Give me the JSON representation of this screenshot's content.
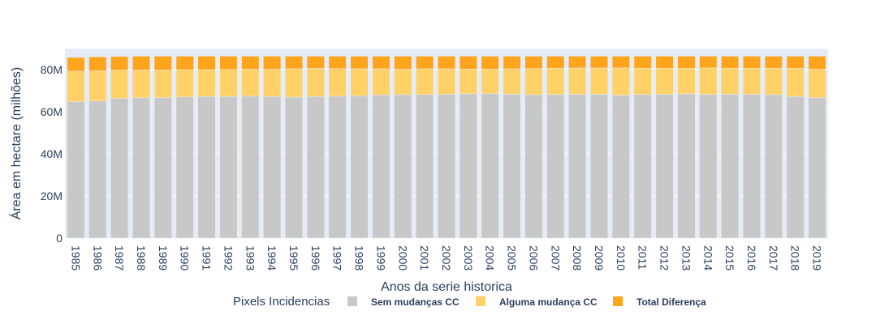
{
  "chart_data": {
    "type": "bar",
    "stacked": true,
    "title": "",
    "xlabel": "Anos da serie historica",
    "ylabel": "Área em hectare (milhões)",
    "ylim": [
      0,
      90000000
    ],
    "yticks": [
      0,
      20000000,
      40000000,
      60000000,
      80000000
    ],
    "ytick_labels": [
      "0",
      "20M",
      "40M",
      "60M",
      "80M"
    ],
    "grid": true,
    "legend_title": "Pixels Incidencias",
    "legend_position": "bottom",
    "categories": [
      "1985",
      "1986",
      "1987",
      "1988",
      "1989",
      "1990",
      "1991",
      "1992",
      "1993",
      "1994",
      "1995",
      "1996",
      "1997",
      "1998",
      "1999",
      "2000",
      "2001",
      "2002",
      "2003",
      "2004",
      "2005",
      "2006",
      "2007",
      "2008",
      "2009",
      "2010",
      "2011",
      "2012",
      "2013",
      "2014",
      "2015",
      "2016",
      "2017",
      "2018",
      "2019"
    ],
    "series": [
      {
        "name": "Sem mudanças CC",
        "color": "#c8c8c8",
        "values": [
          64800000,
          65100000,
          66300000,
          66600000,
          66700000,
          67000000,
          67300000,
          67300000,
          67400000,
          67300000,
          66900000,
          67200000,
          67400000,
          67600000,
          68000000,
          68100000,
          68200000,
          68300000,
          68500000,
          68600000,
          68300000,
          68100000,
          68200000,
          68300000,
          68300000,
          67900000,
          68200000,
          68300000,
          68500000,
          68200000,
          68300000,
          68300000,
          68100000,
          67300000,
          66700000
        ]
      },
      {
        "name": "Alguma mudança CC",
        "color": "#ffd166",
        "values": [
          14500000,
          14400000,
          13500000,
          13300000,
          13200000,
          13000000,
          12700000,
          12800000,
          12800000,
          12900000,
          13500000,
          13400000,
          13100000,
          12800000,
          12400000,
          12200000,
          12200000,
          12100000,
          11800000,
          11700000,
          12100000,
          12400000,
          12500000,
          12500000,
          12500000,
          12900000,
          12500000,
          12400000,
          12100000,
          12600000,
          12400000,
          12400000,
          12600000,
          13300000,
          13600000
        ]
      },
      {
        "name": "Total Diferença",
        "color": "#ffa41b",
        "values": [
          6500000,
          6600000,
          6500000,
          6500000,
          6500000,
          6400000,
          6400000,
          6300000,
          6200000,
          6200000,
          6000000,
          5800000,
          5900000,
          6000000,
          6000000,
          6100000,
          6000000,
          6000000,
          6100000,
          6100000,
          6000000,
          5900000,
          5700000,
          5600000,
          5600000,
          5600000,
          5700000,
          5700000,
          5800000,
          5600000,
          5700000,
          5700000,
          5700000,
          5800000,
          6100000
        ]
      }
    ]
  }
}
